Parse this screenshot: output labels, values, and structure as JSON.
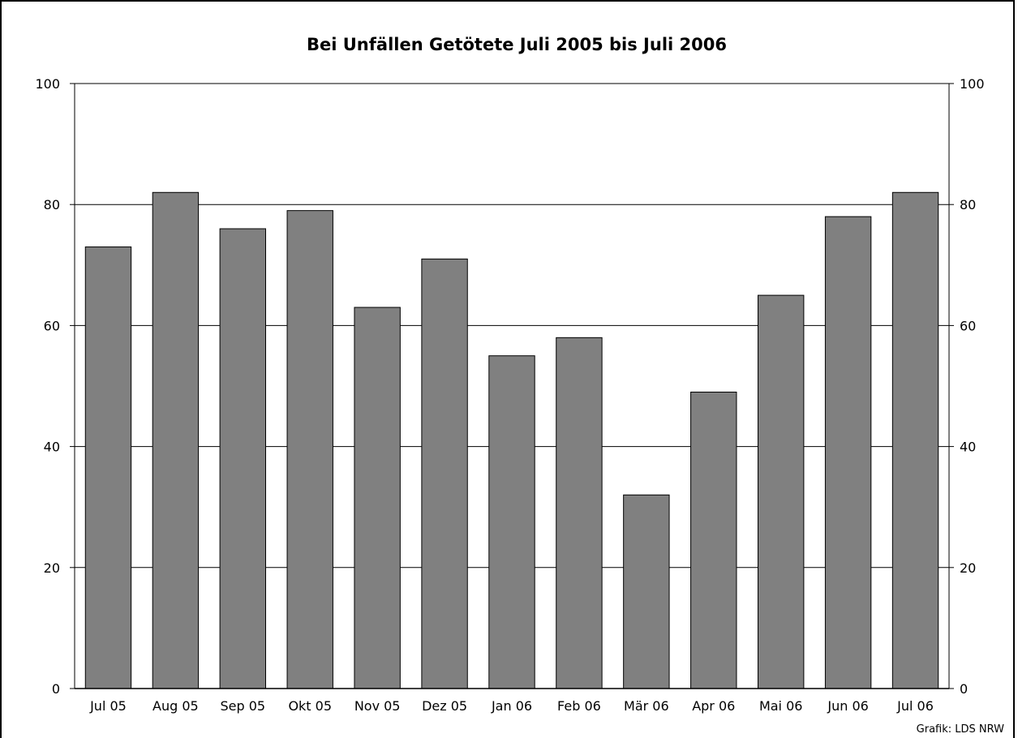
{
  "chart_data": {
    "type": "bar",
    "title": "Bei Unfällen Getötete Juli 2005 bis Juli 2006",
    "xlabel": "",
    "ylabel": "",
    "categories": [
      "Jul 05",
      "Aug 05",
      "Sep 05",
      "Okt 05",
      "Nov 05",
      "Dez 05",
      "Jan 06",
      "Feb 06",
      "Mär 06",
      "Apr 06",
      "Mai 06",
      "Jun 06",
      "Jul 06"
    ],
    "values": [
      73,
      82,
      76,
      79,
      63,
      71,
      55,
      58,
      32,
      49,
      65,
      78,
      82
    ],
    "ylim": [
      0,
      100
    ],
    "yticks": [
      0,
      20,
      40,
      60,
      80,
      100
    ],
    "grid": true,
    "secondary_y_axis": true,
    "bar_color": "#808080",
    "source": "Grafik: LDS NRW"
  }
}
